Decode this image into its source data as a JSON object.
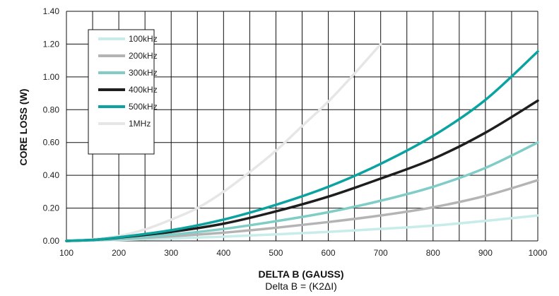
{
  "chart_data": {
    "type": "line",
    "xlabel": "DELTA B (GAUSS)",
    "xlabel_sub": "Delta B = (K2ΔI)",
    "ylabel": "CORE LOSS (W)",
    "xlim": [
      100,
      1000
    ],
    "ylim": [
      0,
      1.4
    ],
    "x_ticks": [
      "100",
      "200",
      "300",
      "400",
      "500",
      "600",
      "700",
      "800",
      "900",
      "1000"
    ],
    "y_ticks": [
      "0.00",
      "0.20",
      "0.40",
      "0.60",
      "0.80",
      "1.00",
      "1.20",
      "1.40"
    ],
    "grid": true,
    "legend_position": "top-left",
    "series": [
      {
        "name": "100kHz",
        "color": "#c8ecea",
        "x": [
          100,
          150,
          200,
          300,
          400,
          500,
          600,
          700,
          800,
          900,
          1000
        ],
        "y": [
          0,
          0.003,
          0.006,
          0.015,
          0.026,
          0.04,
          0.055,
          0.073,
          0.093,
          0.122,
          0.155
        ]
      },
      {
        "name": "200kHz",
        "color": "#b4b4b4",
        "x": [
          100,
          150,
          200,
          300,
          400,
          500,
          600,
          700,
          800,
          900,
          1000
        ],
        "y": [
          0,
          0.004,
          0.01,
          0.028,
          0.05,
          0.08,
          0.115,
          0.155,
          0.205,
          0.275,
          0.37
        ]
      },
      {
        "name": "300kHz",
        "color": "#7fcdc6",
        "x": [
          100,
          150,
          200,
          300,
          400,
          500,
          600,
          700,
          800,
          900,
          1000
        ],
        "y": [
          0,
          0.005,
          0.012,
          0.038,
          0.073,
          0.12,
          0.175,
          0.245,
          0.33,
          0.445,
          0.6
        ]
      },
      {
        "name": "400kHz",
        "color": "#1e1e1e",
        "x": [
          100,
          150,
          200,
          300,
          400,
          500,
          600,
          700,
          800,
          900,
          1000
        ],
        "y": [
          0,
          0.006,
          0.02,
          0.055,
          0.105,
          0.18,
          0.27,
          0.38,
          0.5,
          0.66,
          0.855
        ]
      },
      {
        "name": "500kHz",
        "color": "#0aa3a0",
        "x": [
          100,
          150,
          200,
          300,
          400,
          500,
          600,
          700,
          800,
          900,
          1000
        ],
        "y": [
          0,
          0.006,
          0.022,
          0.065,
          0.13,
          0.22,
          0.33,
          0.47,
          0.64,
          0.86,
          1.155
        ]
      },
      {
        "name": "1MHz",
        "color": "#e6e6e6",
        "x": [
          100,
          150,
          200,
          250,
          300,
          350,
          400,
          450,
          500,
          550,
          600,
          650,
          700
        ],
        "y": [
          0,
          0.01,
          0.03,
          0.07,
          0.13,
          0.2,
          0.3,
          0.42,
          0.55,
          0.7,
          0.85,
          1.02,
          1.2
        ]
      }
    ]
  }
}
